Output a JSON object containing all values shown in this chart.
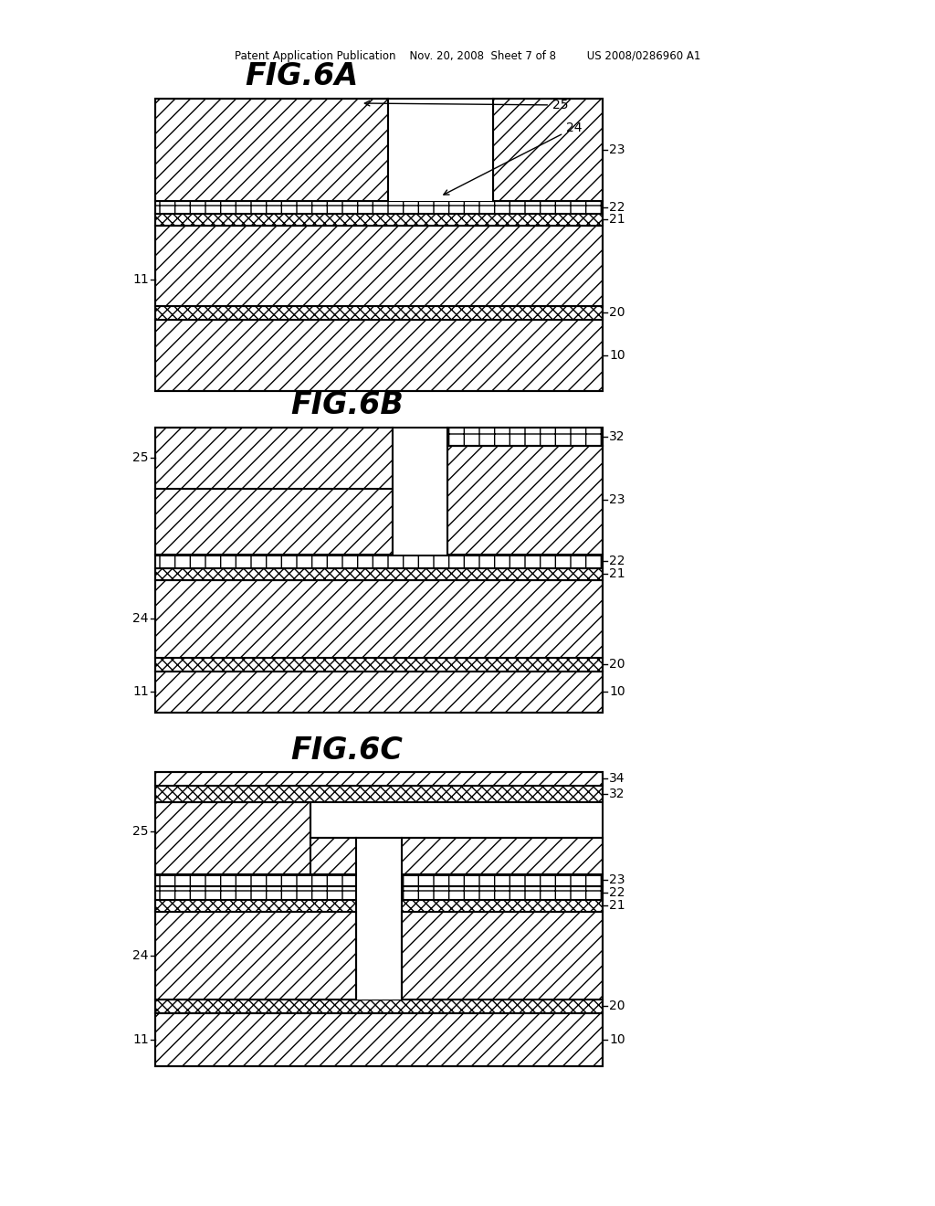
{
  "bg_color": "#ffffff",
  "header_text": "Patent Application Publication    Nov. 20, 2008  Sheet 7 of 8         US 2008/0286960 A1",
  "fig6a_title": "FIG.6A",
  "fig6b_title": "FIG.6B",
  "fig6c_title": "FIG.6C",
  "label_fontsize": 10,
  "title_fontsize": 24,
  "lw": 1.5
}
